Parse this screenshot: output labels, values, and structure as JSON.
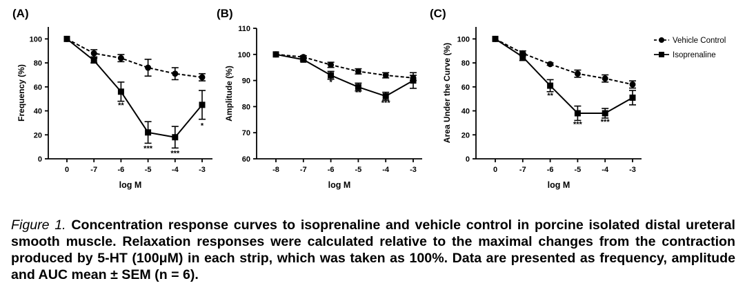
{
  "chart_data": [
    {
      "type": "line",
      "panel_label": "(A)",
      "xlabel": "log M",
      "ylabel": "Frequency (%)",
      "categories": [
        "0",
        "-7",
        "-6",
        "-5",
        "-4",
        "-3"
      ],
      "ylim": [
        0,
        110
      ],
      "yticks": [
        0,
        20,
        40,
        60,
        80,
        100
      ],
      "grid": false,
      "series": [
        {
          "name": "Vehicle Control",
          "marker": "circle",
          "dash": "dashed",
          "values": [
            100,
            88,
            84,
            76,
            71,
            68
          ],
          "sem": [
            0,
            3,
            3,
            7,
            5,
            3
          ]
        },
        {
          "name": "Isoprenaline",
          "marker": "square",
          "dash": "solid",
          "values": [
            100,
            82,
            56,
            22,
            18,
            45
          ],
          "sem": [
            0,
            2,
            8,
            9,
            9,
            12
          ]
        }
      ],
      "annotations": [
        {
          "category": "-6",
          "value": 45,
          "text": "**"
        },
        {
          "category": "-5",
          "value": 9,
          "text": "***"
        },
        {
          "category": "-4",
          "value": 5,
          "text": "***"
        },
        {
          "category": "-3",
          "value": 28,
          "text": "*"
        }
      ]
    },
    {
      "type": "line",
      "panel_label": "(B)",
      "xlabel": "log M",
      "ylabel": "Amplitude (%)",
      "categories": [
        "-8",
        "-7",
        "-6",
        "-5",
        "-4",
        "-3"
      ],
      "ylim": [
        60,
        110
      ],
      "yticks": [
        60,
        70,
        80,
        90,
        100,
        110
      ],
      "grid": false,
      "series": [
        {
          "name": "Vehicle Control",
          "marker": "circle",
          "dash": "dashed",
          "values": [
            100,
            99,
            96,
            93.5,
            92,
            91
          ],
          "sem": [
            0,
            0.5,
            1,
            1,
            1,
            1
          ]
        },
        {
          "name": "Isoprenaline",
          "marker": "square",
          "dash": "solid",
          "values": [
            100,
            98,
            92,
            87.5,
            84,
            90
          ],
          "sem": [
            0,
            0.5,
            1.5,
            1.5,
            1.5,
            3
          ]
        }
      ],
      "annotations": [
        {
          "category": "-6",
          "value": 89.5,
          "text": "*"
        },
        {
          "category": "-5",
          "value": 85.5,
          "text": "**"
        },
        {
          "category": "-4",
          "value": 81.5,
          "text": "***"
        }
      ]
    },
    {
      "type": "line",
      "panel_label": "(C)",
      "xlabel": "log M",
      "ylabel": "Area  Under the Curve (%)",
      "categories": [
        "0",
        "-7",
        "-6",
        "-5",
        "-4",
        "-3"
      ],
      "ylim": [
        0,
        110
      ],
      "yticks": [
        0,
        20,
        40,
        60,
        80,
        100
      ],
      "grid": false,
      "legend": "top-right",
      "series": [
        {
          "name": "Vehicle Control",
          "marker": "circle",
          "dash": "dashed",
          "values": [
            100,
            88,
            79,
            71,
            67,
            62
          ],
          "sem": [
            0,
            2,
            1,
            3,
            3,
            3
          ]
        },
        {
          "name": "Isoprenaline",
          "marker": "square",
          "dash": "solid",
          "values": [
            100,
            85,
            61,
            38,
            38,
            51
          ],
          "sem": [
            0,
            3,
            5,
            6,
            4,
            6
          ]
        }
      ],
      "annotations": [
        {
          "category": "-6",
          "value": 53,
          "text": "**"
        },
        {
          "category": "-5",
          "value": 29,
          "text": "***"
        },
        {
          "category": "-4",
          "value": 31,
          "text": "***"
        }
      ]
    }
  ],
  "caption": {
    "lead": "Figure 1.",
    "body": "Concentration response curves to isoprenaline and vehicle control  in porcine isolated distal ureteral smooth muscle. Relaxation responses were calculated relative to the maximal changes from the contraction produced by 5-HT (100μM) in each strip, which was taken as 100%. Data are presented as frequency, amplitude and AUC mean ± SEM (n = 6)."
  }
}
